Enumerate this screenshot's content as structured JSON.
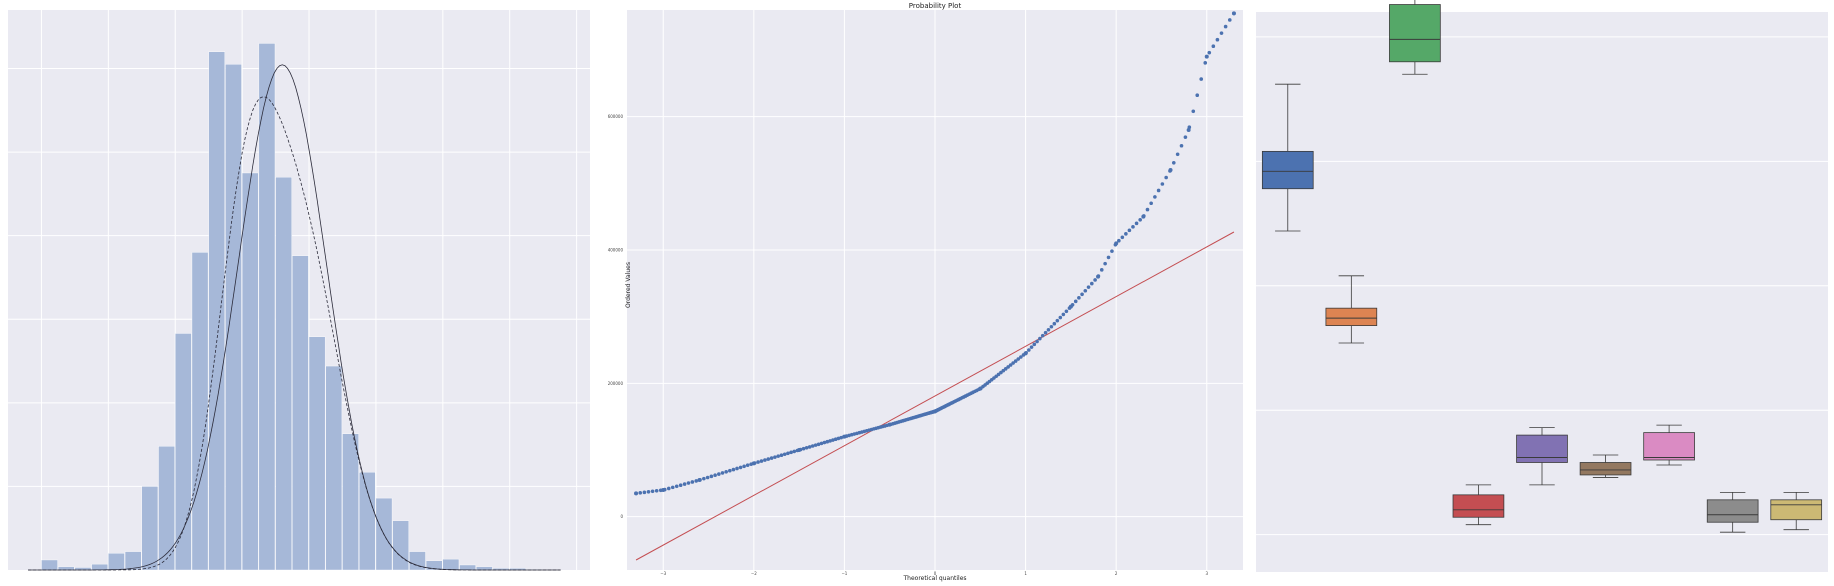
{
  "figure": {
    "colors": {
      "panel_bg": "#eaeaf2",
      "grid": "#ffffff",
      "hist_fill": "#a6b8d8",
      "qq_points": "#4c72b0",
      "qq_line": "#c44e52",
      "curve": "#2b2b3a"
    }
  },
  "chart_data": [
    {
      "type": "bar",
      "subtype": "histogram-with-density",
      "title": "",
      "xlabel": "",
      "ylabel": "",
      "xlim": [
        -0.5,
        8.2
      ],
      "ylim": [
        0,
        0.67
      ],
      "bin_width": 0.25,
      "bin_starts": [
        0.0,
        0.25,
        0.5,
        0.75,
        1.0,
        1.25,
        1.5,
        1.75,
        2.0,
        2.25,
        2.5,
        2.75,
        3.0,
        3.25,
        3.5,
        3.75,
        4.0,
        4.25,
        4.5,
        4.75,
        5.0,
        5.25,
        5.5,
        5.75,
        6.0,
        6.25,
        6.5,
        6.75,
        7.0,
        7.25
      ],
      "values": [
        0.012,
        0.004,
        0.003,
        0.007,
        0.02,
        0.022,
        0.1,
        0.148,
        0.283,
        0.38,
        0.62,
        0.605,
        0.475,
        0.63,
        0.47,
        0.376,
        0.279,
        0.244,
        0.163,
        0.117,
        0.086,
        0.059,
        0.022,
        0.011,
        0.013,
        0.006,
        0.004,
        0.002,
        0.002,
        0.001
      ],
      "series": [
        {
          "kind": "normal-fit",
          "mean": 3.6,
          "sd": 0.66
        },
        {
          "kind": "kde",
          "components": [
            {
              "mean": 3.05,
              "sd": 0.45,
              "weight": 0.4
            },
            {
              "mean": 3.85,
              "sd": 0.6,
              "weight": 0.6
            }
          ]
        }
      ]
    },
    {
      "type": "scatter",
      "title": "Probability Plot",
      "xlabel": "Theoretical quantiles",
      "ylabel": "Ordered Values",
      "xlim": [
        -3.4,
        3.4
      ],
      "ylim": [
        -80000,
        760000
      ],
      "xticks": [
        -3,
        -2,
        -1,
        0,
        1,
        2,
        3
      ],
      "yticks": [
        0,
        200000,
        400000,
        600000
      ],
      "fit_line": {
        "x": [
          -3.3,
          3.3
        ],
        "y": [
          -65000,
          427000
        ]
      },
      "anchors": {
        "x": [
          -3.3,
          -3.0,
          -2.6,
          -2.0,
          -1.5,
          -1.0,
          -0.5,
          0.0,
          0.5,
          1.0,
          1.5,
          1.8,
          2.0,
          2.3,
          2.6,
          2.8,
          3.0,
          3.3
        ],
        "y": [
          35000,
          40000,
          55000,
          80000,
          100000,
          120000,
          138000,
          158000,
          192000,
          245000,
          315000,
          360000,
          410000,
          450000,
          520000,
          580000,
          690000,
          755000
        ]
      }
    },
    {
      "type": "box",
      "title": "",
      "xlabel": "",
      "ylabel": "",
      "ylim": [
        11.1,
        13.35
      ],
      "boxes": [
        {
          "color": "#4c72b0",
          "whislo": 12.47,
          "q1": 12.64,
          "med": 12.71,
          "q3": 12.79,
          "whishi": 13.06
        },
        {
          "color": "#dd8452",
          "whislo": 12.02,
          "q1": 12.09,
          "med": 12.12,
          "q3": 12.16,
          "whishi": 12.29
        },
        {
          "color": "#55a868",
          "whislo": 13.1,
          "q1": 13.15,
          "med": 13.24,
          "q3": 13.38,
          "whishi": 13.45
        },
        {
          "color": "#c44e52",
          "whislo": 11.29,
          "q1": 11.32,
          "med": 11.35,
          "q3": 11.41,
          "whishi": 11.45
        },
        {
          "color": "#8172b3",
          "whislo": 11.45,
          "q1": 11.54,
          "med": 11.56,
          "q3": 11.65,
          "whishi": 11.68
        },
        {
          "color": "#937860",
          "whislo": 11.48,
          "q1": 11.49,
          "med": 11.51,
          "q3": 11.54,
          "whishi": 11.57
        },
        {
          "color": "#da8bc3",
          "whislo": 11.53,
          "q1": 11.55,
          "med": 11.56,
          "q3": 11.66,
          "whishi": 11.69
        },
        {
          "color": "#8c8c8c",
          "whislo": 11.26,
          "q1": 11.3,
          "med": 11.33,
          "q3": 11.39,
          "whishi": 11.42
        },
        {
          "color": "#ccb974",
          "whislo": 11.27,
          "q1": 11.31,
          "med": 11.37,
          "q3": 11.39,
          "whishi": 11.42
        }
      ]
    }
  ]
}
